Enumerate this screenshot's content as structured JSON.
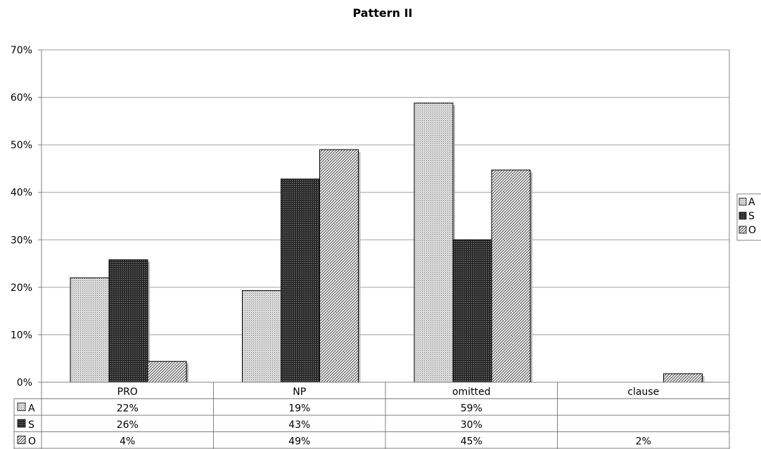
{
  "chart_data": {
    "type": "bar",
    "title": "Pattern II",
    "xlabel": "",
    "ylabel": "",
    "ylim": [
      0,
      70
    ],
    "y_tick_values": [
      0,
      10,
      20,
      30,
      40,
      50,
      60,
      70
    ],
    "y_tick_labels": [
      "0%",
      "10%",
      "20%",
      "30%",
      "40%",
      "50%",
      "60%",
      "70%"
    ],
    "categories": [
      "PRO",
      "NP",
      "omitted",
      "clause"
    ],
    "grid": true,
    "legend_position": "right",
    "series": [
      {
        "name": "A",
        "values": [
          22,
          19.3,
          58.8,
          null
        ],
        "labels": [
          "22%",
          "19%",
          "59%",
          ""
        ],
        "pattern": "dots-light"
      },
      {
        "name": "S",
        "values": [
          25.8,
          42.8,
          30,
          null
        ],
        "labels": [
          "26%",
          "43%",
          "30%",
          ""
        ],
        "pattern": "grid-dark"
      },
      {
        "name": "O",
        "values": [
          4.4,
          49,
          44.7,
          1.8
        ],
        "labels": [
          "4%",
          "49%",
          "45%",
          "2%"
        ],
        "pattern": "diagonal"
      }
    ],
    "colors": {
      "grid": "#a0a0a0",
      "axis": "#808080",
      "bar_stroke": "#000000",
      "shadow": "#b8b8b8"
    }
  }
}
